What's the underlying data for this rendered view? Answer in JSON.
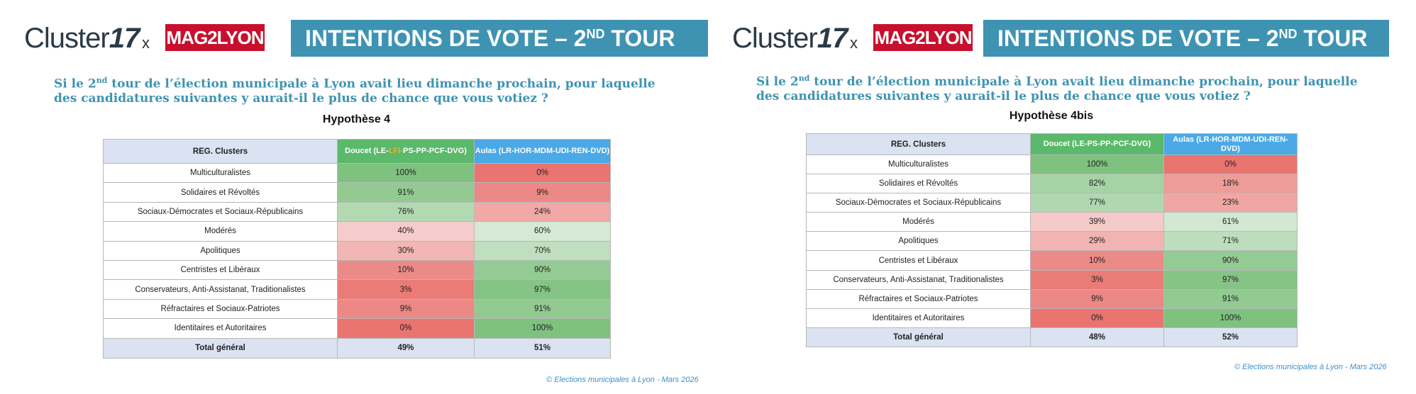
{
  "header": {
    "logo_cluster_prefix": "Cluster",
    "logo_cluster_number": "17",
    "logo_x": "x",
    "logo_mag": "MAG2LYON",
    "banner_title": "INTENTIONS DE VOTE – 2",
    "banner_sup": "ND",
    "banner_suffix": " TOUR"
  },
  "question": {
    "part1": "Si le 2",
    "sup": "nd",
    "part2": " tour de l’élection municipale à Lyon avait lieu dimanche prochain, pour laquelle",
    "line2": "des candidatures suivantes y aurait-il le plus de chance que vous votiez ?"
  },
  "credit": "© Elections municipales à Lyon - Mars 2026",
  "colors": {
    "banner": "#3e93b3",
    "doucet_header": "#5ab96a",
    "aulas_header": "#4aa9e6",
    "high_green": "#7fc17f",
    "high_red": "#e97470",
    "total_row": "#dbe2f1"
  },
  "chart_data": [
    {
      "type": "table",
      "title": "Hypothèse 4",
      "columns": [
        "REG. Clusters",
        "Doucet (LE-LFI-PS-PP-PCF-DVG)",
        "Aulas (LR-HOR-MDM-UDI-REN-DVD)"
      ],
      "doucet_header_parts": [
        "Doucet (LE-",
        "LFI-",
        "PS-PP-PCF-DVG)"
      ],
      "rows": [
        {
          "cluster": "Multiculturalistes",
          "doucet": "100%",
          "aulas": "0%"
        },
        {
          "cluster": "Solidaires et Révoltés",
          "doucet": "91%",
          "aulas": "9%"
        },
        {
          "cluster": "Sociaux-Démocrates et Sociaux-Républicains",
          "doucet": "76%",
          "aulas": "24%"
        },
        {
          "cluster": "Modérés",
          "doucet": "40%",
          "aulas": "60%"
        },
        {
          "cluster": "Apolitiques",
          "doucet": "30%",
          "aulas": "70%"
        },
        {
          "cluster": "Centristes et Libéraux",
          "doucet": "10%",
          "aulas": "90%"
        },
        {
          "cluster": "Conservateurs, Anti-Assistanat, Traditionalistes",
          "doucet": "3%",
          "aulas": "97%"
        },
        {
          "cluster": "Réfractaires et Sociaux-Patriotes",
          "doucet": "9%",
          "aulas": "91%"
        },
        {
          "cluster": "Identitaires et Autoritaires",
          "doucet": "0%",
          "aulas": "100%"
        }
      ],
      "total": {
        "label": "Total général",
        "doucet": "49%",
        "aulas": "51%"
      }
    },
    {
      "type": "table",
      "title": "Hypothèse 4bis",
      "columns": [
        "REG. Clusters",
        "Doucet (LE-PS-PP-PCF-DVG)",
        "Aulas (LR-HOR-MDM-UDI-REN-DVD)"
      ],
      "doucet_header_parts": [
        "Doucet (LE-PS-PP-PCF-DVG)",
        "",
        ""
      ],
      "rows": [
        {
          "cluster": "Multiculturalistes",
          "doucet": "100%",
          "aulas": "0%"
        },
        {
          "cluster": "Solidaires et Révoltés",
          "doucet": "82%",
          "aulas": "18%"
        },
        {
          "cluster": "Sociaux-Démocrates et Sociaux-Républicains",
          "doucet": "77%",
          "aulas": "23%"
        },
        {
          "cluster": "Modérés",
          "doucet": "39%",
          "aulas": "61%"
        },
        {
          "cluster": "Apolitiques",
          "doucet": "29%",
          "aulas": "71%"
        },
        {
          "cluster": "Centristes et Libéraux",
          "doucet": "10%",
          "aulas": "90%"
        },
        {
          "cluster": "Conservateurs, Anti-Assistanat, Traditionalistes",
          "doucet": "3%",
          "aulas": "97%"
        },
        {
          "cluster": "Réfractaires et Sociaux-Patriotes",
          "doucet": "9%",
          "aulas": "91%"
        },
        {
          "cluster": "Identitaires et Autoritaires",
          "doucet": "0%",
          "aulas": "100%"
        }
      ],
      "total": {
        "label": "Total général",
        "doucet": "48%",
        "aulas": "52%"
      }
    }
  ]
}
